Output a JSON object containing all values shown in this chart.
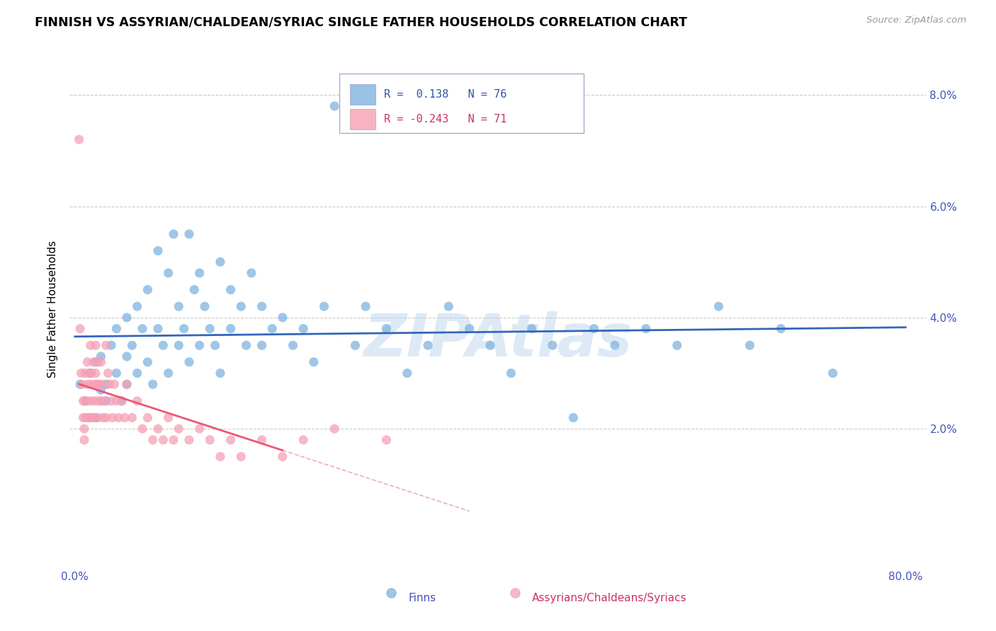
{
  "title": "FINNISH VS ASSYRIAN/CHALDEAN/SYRIAC SINGLE FATHER HOUSEHOLDS CORRELATION CHART",
  "source": "Source: ZipAtlas.com",
  "ylabel": "Single Father Households",
  "blue_R": 0.138,
  "blue_N": 76,
  "pink_R": -0.243,
  "pink_N": 71,
  "blue_color": "#7fb3e0",
  "pink_color": "#f5a0b5",
  "blue_line_color": "#3366bb",
  "pink_line_color": "#ee5577",
  "watermark": "ZIPAtlas",
  "legend_label_blue": "Finns",
  "legend_label_pink": "Assyrians/Chaldeans/Syriacs",
  "xlim": [
    -0.005,
    0.82
  ],
  "ylim": [
    -0.005,
    0.088
  ],
  "blue_scatter_x": [
    0.005,
    0.01,
    0.015,
    0.02,
    0.02,
    0.025,
    0.025,
    0.03,
    0.03,
    0.035,
    0.04,
    0.04,
    0.045,
    0.05,
    0.05,
    0.05,
    0.055,
    0.06,
    0.06,
    0.065,
    0.07,
    0.07,
    0.075,
    0.08,
    0.08,
    0.085,
    0.09,
    0.09,
    0.095,
    0.1,
    0.1,
    0.105,
    0.11,
    0.11,
    0.115,
    0.12,
    0.12,
    0.125,
    0.13,
    0.135,
    0.14,
    0.14,
    0.15,
    0.15,
    0.16,
    0.165,
    0.17,
    0.18,
    0.18,
    0.19,
    0.2,
    0.21,
    0.22,
    0.23,
    0.24,
    0.25,
    0.27,
    0.28,
    0.3,
    0.32,
    0.34,
    0.36,
    0.38,
    0.4,
    0.42,
    0.44,
    0.46,
    0.48,
    0.5,
    0.52,
    0.55,
    0.58,
    0.62,
    0.65,
    0.68,
    0.73
  ],
  "blue_scatter_y": [
    0.028,
    0.025,
    0.03,
    0.032,
    0.022,
    0.027,
    0.033,
    0.028,
    0.025,
    0.035,
    0.03,
    0.038,
    0.025,
    0.033,
    0.04,
    0.028,
    0.035,
    0.042,
    0.03,
    0.038,
    0.045,
    0.032,
    0.028,
    0.052,
    0.038,
    0.035,
    0.048,
    0.03,
    0.055,
    0.042,
    0.035,
    0.038,
    0.032,
    0.055,
    0.045,
    0.035,
    0.048,
    0.042,
    0.038,
    0.035,
    0.05,
    0.03,
    0.045,
    0.038,
    0.042,
    0.035,
    0.048,
    0.035,
    0.042,
    0.038,
    0.04,
    0.035,
    0.038,
    0.032,
    0.042,
    0.078,
    0.035,
    0.042,
    0.038,
    0.03,
    0.035,
    0.042,
    0.038,
    0.035,
    0.03,
    0.038,
    0.035,
    0.022,
    0.038,
    0.035,
    0.038,
    0.035,
    0.042,
    0.035,
    0.038,
    0.03
  ],
  "pink_scatter_x": [
    0.004,
    0.006,
    0.007,
    0.008,
    0.008,
    0.009,
    0.009,
    0.01,
    0.01,
    0.01,
    0.012,
    0.012,
    0.013,
    0.013,
    0.014,
    0.014,
    0.015,
    0.015,
    0.015,
    0.016,
    0.017,
    0.018,
    0.018,
    0.019,
    0.02,
    0.02,
    0.02,
    0.021,
    0.022,
    0.022,
    0.023,
    0.024,
    0.025,
    0.025,
    0.026,
    0.027,
    0.028,
    0.03,
    0.03,
    0.032,
    0.033,
    0.035,
    0.036,
    0.038,
    0.04,
    0.042,
    0.045,
    0.048,
    0.05,
    0.055,
    0.06,
    0.065,
    0.07,
    0.075,
    0.08,
    0.085,
    0.09,
    0.095,
    0.1,
    0.11,
    0.12,
    0.13,
    0.14,
    0.15,
    0.16,
    0.18,
    0.2,
    0.22,
    0.25,
    0.3,
    0.005
  ],
  "pink_scatter_y": [
    0.072,
    0.03,
    0.028,
    0.025,
    0.022,
    0.02,
    0.018,
    0.03,
    0.025,
    0.022,
    0.032,
    0.028,
    0.025,
    0.022,
    0.03,
    0.022,
    0.035,
    0.028,
    0.022,
    0.03,
    0.025,
    0.032,
    0.022,
    0.028,
    0.035,
    0.03,
    0.025,
    0.028,
    0.032,
    0.022,
    0.028,
    0.025,
    0.032,
    0.025,
    0.028,
    0.022,
    0.025,
    0.035,
    0.022,
    0.03,
    0.028,
    0.025,
    0.022,
    0.028,
    0.025,
    0.022,
    0.025,
    0.022,
    0.028,
    0.022,
    0.025,
    0.02,
    0.022,
    0.018,
    0.02,
    0.018,
    0.022,
    0.018,
    0.02,
    0.018,
    0.02,
    0.018,
    0.015,
    0.018,
    0.015,
    0.018,
    0.015,
    0.018,
    0.02,
    0.018,
    0.038
  ]
}
